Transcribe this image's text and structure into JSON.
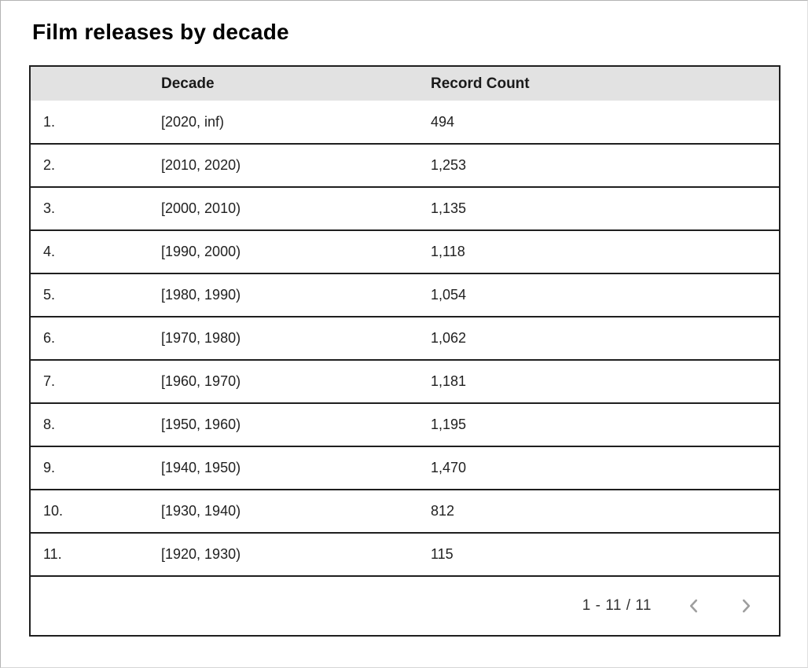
{
  "title": "Film releases by decade",
  "chart_data": {
    "type": "table",
    "title": "Film releases by decade",
    "columns": [
      "",
      "Decade",
      "Record Count"
    ],
    "rows": [
      {
        "index": "1.",
        "decade": "[2020, inf)",
        "record_count": "494"
      },
      {
        "index": "2.",
        "decade": "[2010, 2020)",
        "record_count": "1,253"
      },
      {
        "index": "3.",
        "decade": "[2000, 2010)",
        "record_count": "1,135"
      },
      {
        "index": "4.",
        "decade": "[1990, 2000)",
        "record_count": "1,118"
      },
      {
        "index": "5.",
        "decade": "[1980, 1990)",
        "record_count": "1,054"
      },
      {
        "index": "6.",
        "decade": "[1970, 1980)",
        "record_count": "1,062"
      },
      {
        "index": "7.",
        "decade": "[1960, 1970)",
        "record_count": "1,181"
      },
      {
        "index": "8.",
        "decade": "[1950, 1960)",
        "record_count": "1,195"
      },
      {
        "index": "9.",
        "decade": "[1940, 1950)",
        "record_count": "1,470"
      },
      {
        "index": "10.",
        "decade": "[1930, 1940)",
        "record_count": "812"
      },
      {
        "index": "11.",
        "decade": "[1920, 1930)",
        "record_count": "115"
      }
    ],
    "values": [
      494,
      1253,
      1135,
      1118,
      1054,
      1062,
      1181,
      1195,
      1470,
      812,
      115
    ],
    "categories": [
      "[2020, inf)",
      "[2010, 2020)",
      "[2000, 2010)",
      "[1990, 2000)",
      "[1980, 1990)",
      "[1970, 1980)",
      "[1960, 1970)",
      "[1950, 1960)",
      "[1940, 1950)",
      "[1930, 1940)",
      "[1920, 1930)"
    ]
  },
  "pagination": {
    "range_label": "1 - 11 / 11",
    "prev_icon": "chevron-left-icon",
    "next_icon": "chevron-right-icon"
  },
  "colors": {
    "header_bg": "#e2e2e2",
    "row_border": "#1f1f1f",
    "text": "#212121",
    "title_text": "#000000",
    "chevron": "#9e9e9e",
    "window_border": "#b4b4b4"
  }
}
